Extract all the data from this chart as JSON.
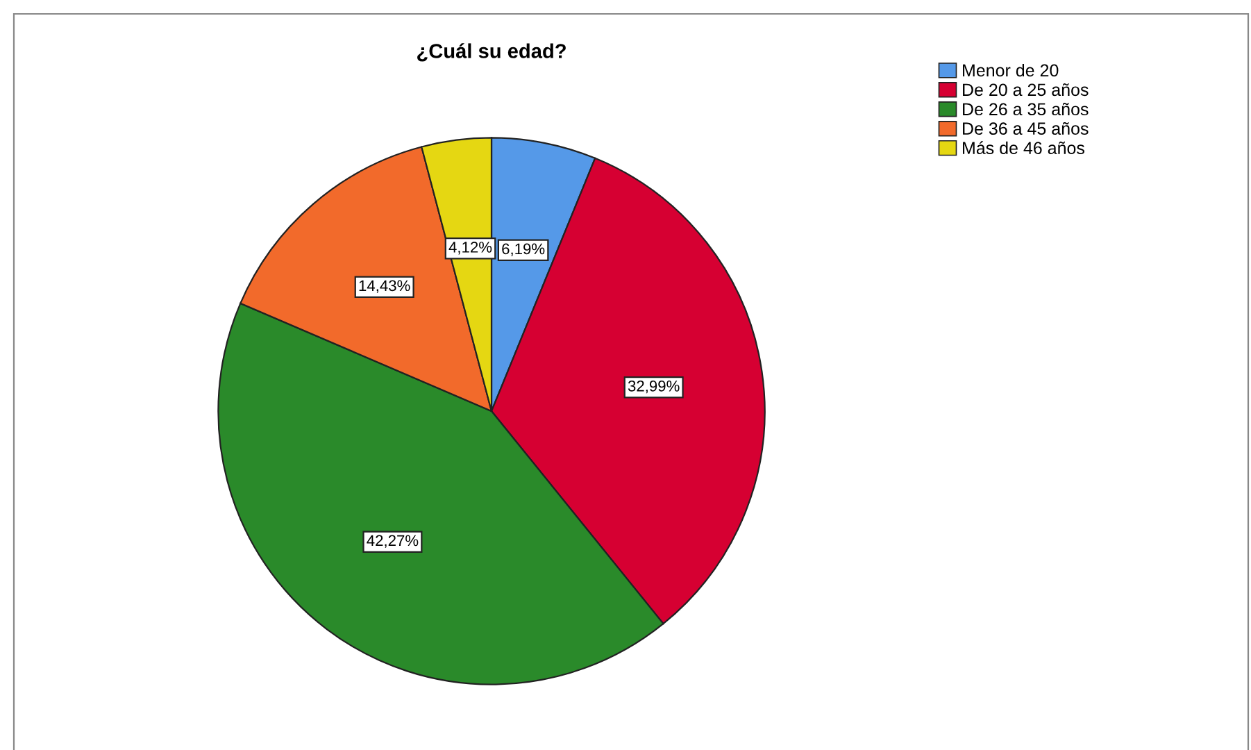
{
  "chart_data": {
    "type": "pie",
    "title": "¿Cuál su edad?",
    "categories": [
      "Menor de 20",
      "De 20 a 25 años",
      "De 26 a 35 años",
      "De 36 a 45 años",
      "Más de 46 años"
    ],
    "values": [
      6.19,
      32.99,
      42.27,
      14.43,
      4.12
    ],
    "colors": [
      "#5599e8",
      "#d60032",
      "#2a8a2a",
      "#f26a2b",
      "#e5d712"
    ],
    "value_labels": [
      "6,19%",
      "32,99%",
      "42,27%",
      "14,43%",
      "4,12%"
    ],
    "legend": "top right"
  }
}
